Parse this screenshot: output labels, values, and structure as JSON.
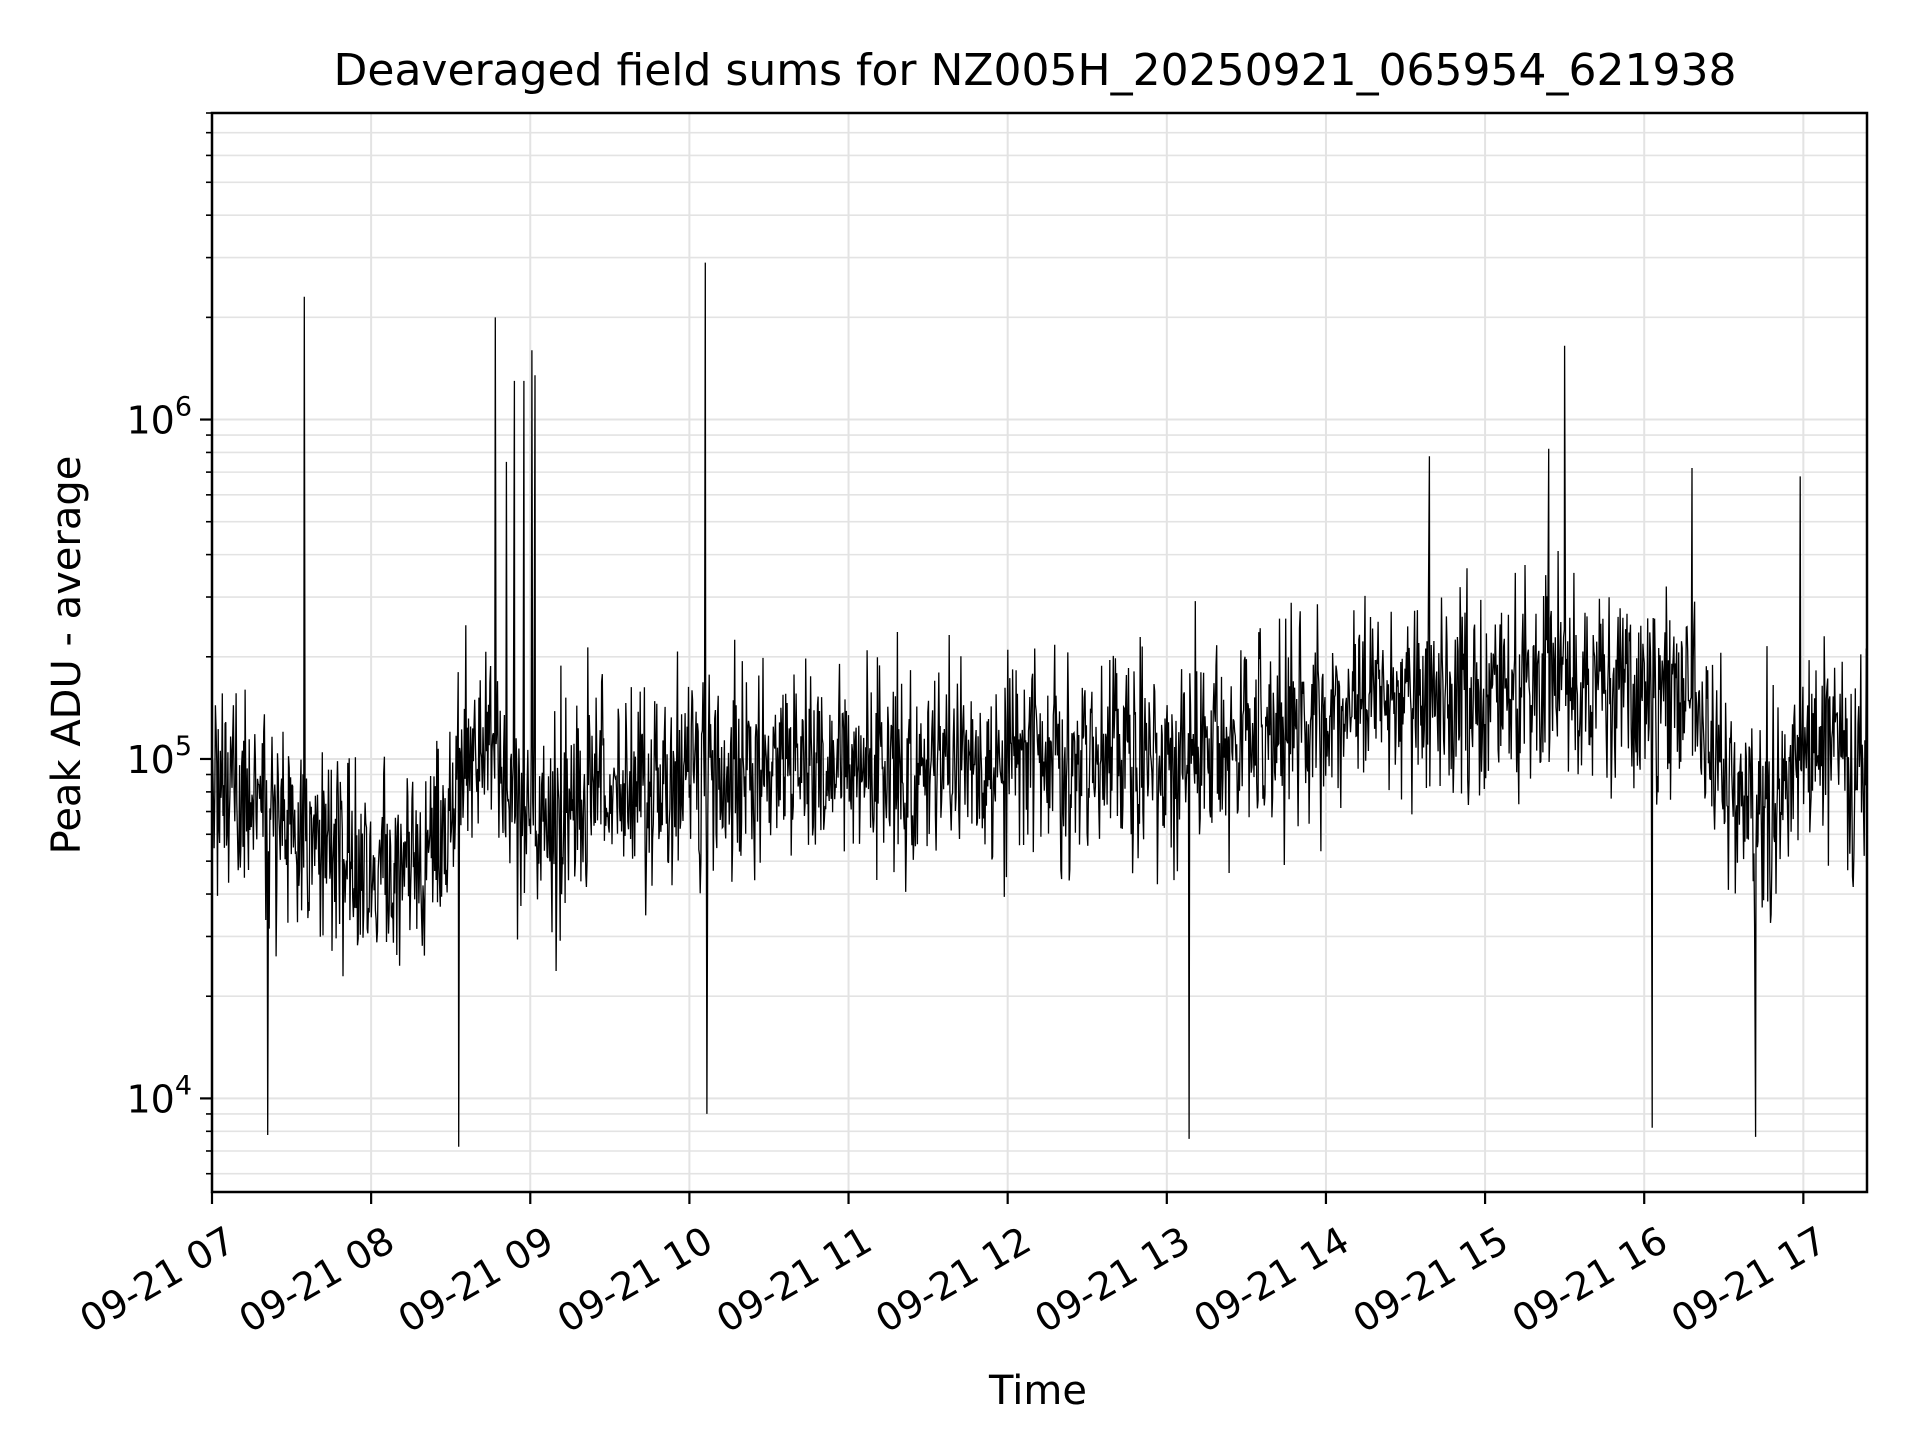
{
  "chart_data": {
    "type": "line",
    "title": "Deaveraged field sums for NZ005H_20250921_065954_621938",
    "xlabel": "Time",
    "ylabel": "Peak ADU - average",
    "yscale": "log",
    "ylim": [
      5300,
      8000000
    ],
    "x_range_hours": [
      7.0,
      17.4
    ],
    "grid": true,
    "x_ticks": [
      {
        "hour": 7,
        "label": "09-21 07"
      },
      {
        "hour": 8,
        "label": "09-21 08"
      },
      {
        "hour": 9,
        "label": "09-21 09"
      },
      {
        "hour": 10,
        "label": "09-21 10"
      },
      {
        "hour": 11,
        "label": "09-21 11"
      },
      {
        "hour": 12,
        "label": "09-21 12"
      },
      {
        "hour": 13,
        "label": "09-21 13"
      },
      {
        "hour": 14,
        "label": "09-21 14"
      },
      {
        "hour": 15,
        "label": "09-21 15"
      },
      {
        "hour": 16,
        "label": "09-21 16"
      },
      {
        "hour": 17,
        "label": "09-21 17"
      }
    ],
    "y_ticks": [
      {
        "value": 10000,
        "base": "10",
        "exp": "4"
      },
      {
        "value": 100000,
        "base": "10",
        "exp": "5"
      },
      {
        "value": 1000000,
        "base": "10",
        "exp": "6"
      }
    ],
    "series": [
      {
        "name": "Peak ADU - average",
        "color": "#000000",
        "baseline": [
          {
            "hour": 7.0,
            "median": 80000
          },
          {
            "hour": 7.5,
            "median": 65000
          },
          {
            "hour": 8.0,
            "median": 45000
          },
          {
            "hour": 8.3,
            "median": 50000
          },
          {
            "hour": 8.7,
            "median": 120000
          },
          {
            "hour": 9.0,
            "median": 70000
          },
          {
            "hour": 9.5,
            "median": 80000
          },
          {
            "hour": 10.0,
            "median": 90000
          },
          {
            "hour": 11.0,
            "median": 95000
          },
          {
            "hour": 12.0,
            "median": 100000
          },
          {
            "hour": 13.0,
            "median": 100000
          },
          {
            "hour": 14.0,
            "median": 130000
          },
          {
            "hour": 14.5,
            "median": 170000
          },
          {
            "hour": 15.0,
            "median": 150000
          },
          {
            "hour": 15.5,
            "median": 170000
          },
          {
            "hour": 16.3,
            "median": 150000
          },
          {
            "hour": 16.7,
            "median": 60000
          },
          {
            "hour": 17.0,
            "median": 110000
          },
          {
            "hour": 17.4,
            "median": 90000
          }
        ],
        "peaks": [
          {
            "hour": 7.58,
            "value": 2300000
          },
          {
            "hour": 8.78,
            "value": 2000000
          },
          {
            "hour": 8.85,
            "value": 750000
          },
          {
            "hour": 8.9,
            "value": 1300000
          },
          {
            "hour": 8.96,
            "value": 1300000
          },
          {
            "hour": 9.01,
            "value": 1600000
          },
          {
            "hour": 9.03,
            "value": 1350000
          },
          {
            "hour": 10.1,
            "value": 2900000
          },
          {
            "hour": 15.5,
            "value": 1650000
          },
          {
            "hour": 15.4,
            "value": 820000
          },
          {
            "hour": 14.65,
            "value": 780000
          },
          {
            "hour": 16.3,
            "value": 720000
          },
          {
            "hour": 16.98,
            "value": 680000
          }
        ],
        "troughs": [
          {
            "hour": 7.35,
            "value": 7800
          },
          {
            "hour": 8.55,
            "value": 7200
          },
          {
            "hour": 10.11,
            "value": 9000
          },
          {
            "hour": 13.14,
            "value": 7600
          },
          {
            "hour": 16.05,
            "value": 8200
          },
          {
            "hour": 16.7,
            "value": 7700
          }
        ]
      }
    ]
  }
}
